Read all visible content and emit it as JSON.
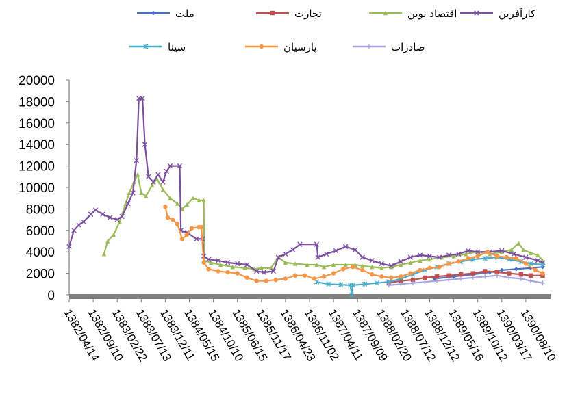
{
  "chart_data": {
    "type": "line",
    "ylim": [
      0,
      20000
    ],
    "y_ticks": [
      "0",
      "2000",
      "4000",
      "6000",
      "8000",
      "10000",
      "12000",
      "14000",
      "16000",
      "18000",
      "20000"
    ],
    "x_ticks": [
      "1382/04/14",
      "1382/09/10",
      "1383/02/22",
      "1383/07/13",
      "1383/12/11",
      "1384/05/15",
      "1384/10/10",
      "1385/06/15",
      "1385/11/17",
      "1386/04/23",
      "1386/11/02",
      "1387/04/11",
      "1387/09/09",
      "1388/02/20",
      "1388/07/12",
      "1388/12/12",
      "1389/05/16",
      "1389/10/12",
      "1390/03/17",
      "1390/08/10"
    ],
    "legend_position": "top",
    "grid": false,
    "series": [
      {
        "name": "ملت",
        "color": "#4472C4",
        "marker": "diamond",
        "points": [
          [
            15.2,
            1500
          ],
          [
            16,
            1700
          ],
          [
            16.8,
            1900
          ],
          [
            17.5,
            2100
          ],
          [
            18,
            2300
          ],
          [
            18.6,
            2400
          ],
          [
            19.2,
            2500
          ],
          [
            19.7,
            2600
          ]
        ]
      },
      {
        "name": "تجارت",
        "color": "#C0504D",
        "marker": "square",
        "points": [
          [
            13.3,
            1100
          ],
          [
            13.8,
            1300
          ],
          [
            14.3,
            1400
          ],
          [
            14.8,
            1600
          ],
          [
            15.3,
            1700
          ],
          [
            15.8,
            1800
          ],
          [
            16.3,
            1900
          ],
          [
            16.8,
            2000
          ],
          [
            17.3,
            2200
          ],
          [
            17.8,
            2100
          ],
          [
            18.3,
            2000
          ],
          [
            18.8,
            1900
          ],
          [
            19.2,
            1800
          ],
          [
            19.7,
            1800
          ]
        ]
      },
      {
        "name": "اقتصاد نوین",
        "color": "#9BBB59",
        "marker": "triangle",
        "points": [
          [
            1.45,
            3800
          ],
          [
            1.6,
            5000
          ],
          [
            1.85,
            5600
          ],
          [
            2.1,
            6800
          ],
          [
            2.35,
            8500
          ],
          [
            2.5,
            9500
          ],
          [
            2.7,
            10500
          ],
          [
            2.85,
            11200
          ],
          [
            3.0,
            9500
          ],
          [
            3.2,
            9200
          ],
          [
            3.45,
            10200
          ],
          [
            3.65,
            10800
          ],
          [
            3.9,
            9800
          ],
          [
            4.2,
            9000
          ],
          [
            4.5,
            8500
          ],
          [
            4.7,
            8000
          ],
          [
            4.9,
            8400
          ],
          [
            5.15,
            9000
          ],
          [
            5.4,
            8800
          ],
          [
            5.6,
            8800
          ],
          [
            5.62,
            3200
          ],
          [
            5.9,
            3000
          ],
          [
            6.3,
            2800
          ],
          [
            6.8,
            2600
          ],
          [
            7.3,
            2500
          ],
          [
            7.7,
            2400
          ],
          [
            8.0,
            2500
          ],
          [
            8.4,
            2500
          ],
          [
            8.7,
            3500
          ],
          [
            9.0,
            3000
          ],
          [
            9.4,
            2900
          ],
          [
            9.9,
            2800
          ],
          [
            10.3,
            2800
          ],
          [
            10.6,
            2600
          ],
          [
            11.0,
            2800
          ],
          [
            11.5,
            2800
          ],
          [
            11.9,
            2800
          ],
          [
            12.2,
            2700
          ],
          [
            12.6,
            2600
          ],
          [
            13.0,
            2500
          ],
          [
            13.4,
            2600
          ],
          [
            13.8,
            2800
          ],
          [
            14.2,
            3000
          ],
          [
            14.6,
            3200
          ],
          [
            15.0,
            3300
          ],
          [
            15.5,
            3500
          ],
          [
            16.0,
            3600
          ],
          [
            16.5,
            3800
          ],
          [
            17.0,
            4000
          ],
          [
            17.5,
            3800
          ],
          [
            18.0,
            4000
          ],
          [
            18.4,
            4200
          ],
          [
            18.7,
            4800
          ],
          [
            18.9,
            4200
          ],
          [
            19.2,
            3900
          ],
          [
            19.5,
            3700
          ],
          [
            19.7,
            3200
          ]
        ]
      },
      {
        "name": "کارآفرین",
        "color": "#7B4FA0",
        "marker": "x",
        "points": [
          [
            0,
            4500
          ],
          [
            0.2,
            6000
          ],
          [
            0.4,
            6500
          ],
          [
            0.6,
            6800
          ],
          [
            0.9,
            7500
          ],
          [
            1.1,
            7900
          ],
          [
            1.4,
            7500
          ],
          [
            1.7,
            7200
          ],
          [
            2.0,
            7000
          ],
          [
            2.2,
            7300
          ],
          [
            2.45,
            8500
          ],
          [
            2.65,
            9500
          ],
          [
            2.8,
            12500
          ],
          [
            2.9,
            18300
          ],
          [
            3.05,
            18300
          ],
          [
            3.15,
            14000
          ],
          [
            3.3,
            11000
          ],
          [
            3.5,
            10500
          ],
          [
            3.7,
            11200
          ],
          [
            3.9,
            10500
          ],
          [
            4.05,
            11500
          ],
          [
            4.2,
            12000
          ],
          [
            4.6,
            12000
          ],
          [
            4.65,
            6000
          ],
          [
            4.9,
            5800
          ],
          [
            5.3,
            5200
          ],
          [
            5.55,
            5200
          ],
          [
            5.6,
            3600
          ],
          [
            5.8,
            3300
          ],
          [
            6.2,
            3200
          ],
          [
            6.6,
            3000
          ],
          [
            7.0,
            2900
          ],
          [
            7.4,
            2800
          ],
          [
            7.8,
            2200
          ],
          [
            8.1,
            2100
          ],
          [
            8.5,
            2200
          ],
          [
            8.7,
            3500
          ],
          [
            9.0,
            3800
          ],
          [
            9.3,
            4200
          ],
          [
            9.6,
            4700
          ],
          [
            10.3,
            4700
          ],
          [
            10.35,
            3500
          ],
          [
            10.7,
            3800
          ],
          [
            11.1,
            4100
          ],
          [
            11.5,
            4500
          ],
          [
            11.9,
            4200
          ],
          [
            12.2,
            3500
          ],
          [
            12.6,
            3200
          ],
          [
            13.0,
            2900
          ],
          [
            13.4,
            2700
          ],
          [
            13.8,
            3100
          ],
          [
            14.2,
            3500
          ],
          [
            14.6,
            3700
          ],
          [
            15.0,
            3600
          ],
          [
            15.4,
            3500
          ],
          [
            15.8,
            3700
          ],
          [
            16.2,
            3800
          ],
          [
            16.6,
            4100
          ],
          [
            17.0,
            4000
          ],
          [
            17.5,
            4000
          ],
          [
            18.0,
            4100
          ],
          [
            18.5,
            3800
          ],
          [
            19.0,
            3500
          ],
          [
            19.5,
            3200
          ],
          [
            19.7,
            3000
          ]
        ]
      },
      {
        "name": "سینا",
        "color": "#4BACC6",
        "marker": "asterisk",
        "points": [
          [
            10.3,
            1200
          ],
          [
            10.8,
            1000
          ],
          [
            11.3,
            950
          ],
          [
            11.7,
            900
          ],
          [
            11.75,
            0
          ],
          [
            11.8,
            900
          ],
          [
            12.3,
            1000
          ],
          [
            12.8,
            1100
          ],
          [
            13.3,
            1200
          ],
          [
            13.8,
            1500
          ],
          [
            14.3,
            1900
          ],
          [
            14.8,
            2300
          ],
          [
            15.3,
            2600
          ],
          [
            15.8,
            2900
          ],
          [
            16.3,
            3100
          ],
          [
            16.8,
            3300
          ],
          [
            17.3,
            3400
          ],
          [
            17.8,
            3500
          ],
          [
            18.3,
            3300
          ],
          [
            18.8,
            3100
          ],
          [
            19.2,
            2900
          ],
          [
            19.7,
            2800
          ]
        ]
      },
      {
        "name": "پارسیان",
        "color": "#F79646",
        "marker": "circle",
        "points": [
          [
            4.0,
            8200
          ],
          [
            4.1,
            7200
          ],
          [
            4.3,
            7000
          ],
          [
            4.5,
            6600
          ],
          [
            4.7,
            5200
          ],
          [
            4.9,
            5600
          ],
          [
            5.1,
            6200
          ],
          [
            5.4,
            6300
          ],
          [
            5.5,
            6300
          ],
          [
            5.6,
            3000
          ],
          [
            5.8,
            2400
          ],
          [
            6.2,
            2200
          ],
          [
            6.6,
            2100
          ],
          [
            7.0,
            2000
          ],
          [
            7.4,
            1600
          ],
          [
            7.8,
            1300
          ],
          [
            8.2,
            1300
          ],
          [
            8.6,
            1400
          ],
          [
            9.0,
            1500
          ],
          [
            9.4,
            1800
          ],
          [
            9.8,
            1800
          ],
          [
            10.2,
            1500
          ],
          [
            10.6,
            1700
          ],
          [
            11.0,
            2000
          ],
          [
            11.4,
            2400
          ],
          [
            11.8,
            2600
          ],
          [
            12.2,
            2300
          ],
          [
            12.6,
            1900
          ],
          [
            13.0,
            1700
          ],
          [
            13.4,
            1600
          ],
          [
            13.8,
            1700
          ],
          [
            14.2,
            2000
          ],
          [
            14.6,
            2300
          ],
          [
            15.0,
            2500
          ],
          [
            15.4,
            2600
          ],
          [
            15.8,
            2900
          ],
          [
            16.2,
            3100
          ],
          [
            16.6,
            3400
          ],
          [
            17.0,
            3600
          ],
          [
            17.4,
            4000
          ],
          [
            17.8,
            3600
          ],
          [
            18.2,
            3500
          ],
          [
            18.6,
            3400
          ],
          [
            19.0,
            2900
          ],
          [
            19.4,
            2300
          ],
          [
            19.7,
            2000
          ]
        ]
      },
      {
        "name": "صادرات",
        "color": "#A5A5E0",
        "marker": "plus",
        "points": [
          [
            13.3,
            900
          ],
          [
            13.8,
            1000
          ],
          [
            14.3,
            1100
          ],
          [
            14.8,
            1200
          ],
          [
            15.3,
            1300
          ],
          [
            15.8,
            1400
          ],
          [
            16.3,
            1500
          ],
          [
            16.8,
            1600
          ],
          [
            17.3,
            1700
          ],
          [
            17.8,
            1800
          ],
          [
            18.3,
            1600
          ],
          [
            18.8,
            1500
          ],
          [
            19.2,
            1300
          ],
          [
            19.7,
            1100
          ]
        ]
      }
    ]
  }
}
